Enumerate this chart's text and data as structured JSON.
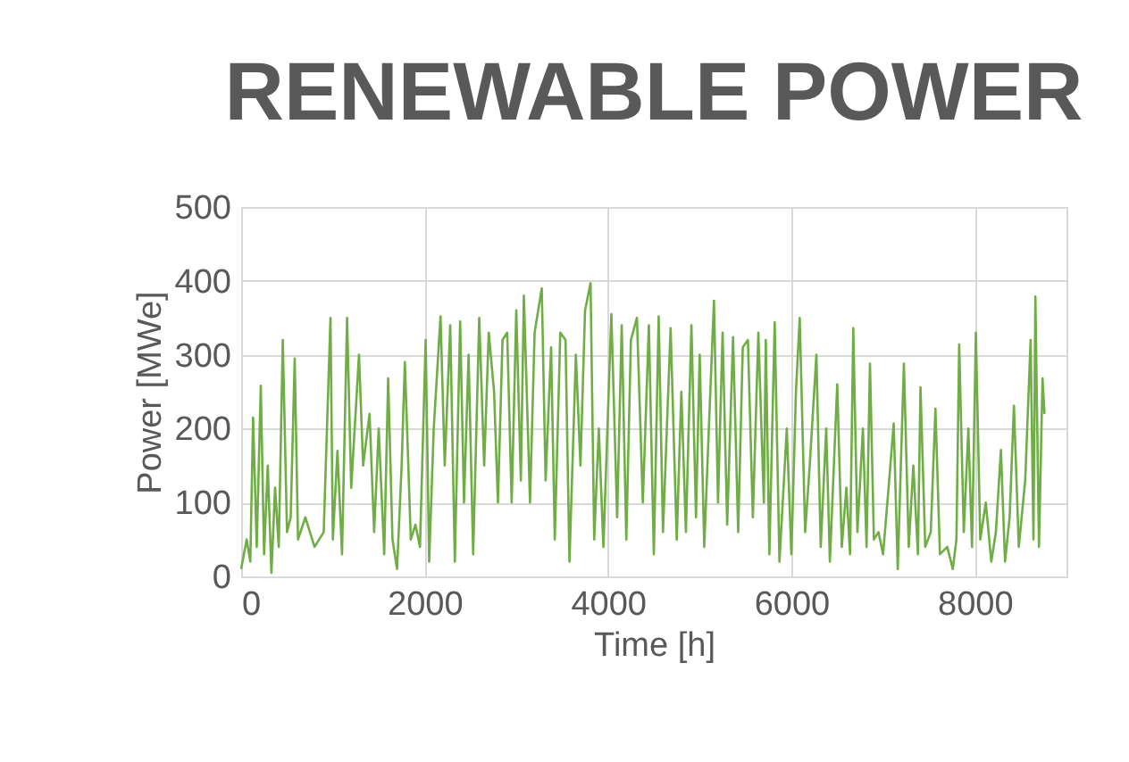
{
  "chart_data": {
    "type": "line",
    "title": "RENEWABLE POWER",
    "xlabel": "Time [h]",
    "ylabel": "Power [MWe]",
    "x": [
      0,
      60,
      100,
      130,
      170,
      214,
      250,
      290,
      330,
      370,
      410,
      454,
      500,
      540,
      584,
      620,
      700,
      800,
      900,
      974,
      1000,
      1050,
      1100,
      1155,
      1200,
      1285,
      1330,
      1400,
      1450,
      1500,
      1560,
      1603,
      1650,
      1700,
      1750,
      1785,
      1850,
      1900,
      1950,
      2012,
      2050,
      2100,
      2174,
      2220,
      2280,
      2330,
      2388,
      2430,
      2480,
      2530,
      2596,
      2650,
      2700,
      2758,
      2800,
      2850,
      2901,
      2950,
      3000,
      3050,
      3083,
      3150,
      3200,
      3278,
      3320,
      3380,
      3420,
      3480,
      3537,
      3580,
      3650,
      3700,
      3750,
      3810,
      3850,
      3900,
      3950,
      4037,
      4100,
      4150,
      4200,
      4250,
      4316,
      4380,
      4446,
      4500,
      4553,
      4600,
      4683,
      4750,
      4800,
      4850,
      4910,
      4960,
      5000,
      5050,
      5100,
      5156,
      5200,
      5250,
      5300,
      5364,
      5420,
      5470,
      5526,
      5580,
      5640,
      5700,
      5721,
      5760,
      5818,
      5870,
      5950,
      6000,
      6050,
      6091,
      6150,
      6200,
      6273,
      6320,
      6380,
      6420,
      6500,
      6550,
      6600,
      6640,
      6675,
      6720,
      6780,
      6820,
      6857,
      6900,
      6950,
      7000,
      7060,
      7116,
      7160,
      7227,
      7280,
      7330,
      7380,
      7408,
      7460,
      7520,
      7571,
      7620,
      7700,
      7760,
      7800,
      7830,
      7880,
      7930,
      7970,
      8012,
      8060,
      8120,
      8180,
      8230,
      8285,
      8330,
      8380,
      8427,
      8480,
      8550,
      8609,
      8640,
      8661,
      8700,
      8739,
      8760
    ],
    "series": [
      {
        "color": "#70ad47",
        "values": [
          10,
          50,
          20,
          215,
          40,
          258,
          30,
          150,
          5,
          120,
          40,
          320,
          60,
          80,
          295,
          50,
          80,
          40,
          60,
          350,
          50,
          170,
          30,
          350,
          120,
          300,
          150,
          220,
          60,
          200,
          30,
          268,
          50,
          10,
          150,
          290,
          50,
          70,
          40,
          320,
          20,
          200,
          352,
          150,
          340,
          20,
          345,
          100,
          300,
          30,
          350,
          150,
          330,
          250,
          100,
          320,
          330,
          100,
          360,
          130,
          380,
          100,
          330,
          390,
          130,
          310,
          50,
          330,
          320,
          20,
          300,
          150,
          360,
          397,
          50,
          200,
          40,
          355,
          80,
          340,
          50,
          320,
          350,
          100,
          340,
          30,
          352,
          60,
          336,
          50,
          250,
          60,
          340,
          80,
          300,
          40,
          200,
          373,
          100,
          330,
          70,
          324,
          60,
          310,
          320,
          80,
          330,
          100,
          320,
          30,
          344,
          20,
          200,
          30,
          250,
          350,
          60,
          150,
          300,
          40,
          200,
          20,
          260,
          40,
          120,
          30,
          336,
          60,
          200,
          40,
          288,
          50,
          60,
          30,
          120,
          207,
          10,
          288,
          40,
          150,
          30,
          256,
          40,
          60,
          227,
          30,
          40,
          10,
          50,
          314,
          60,
          200,
          40,
          330,
          50,
          100,
          20,
          60,
          171,
          20,
          80,
          231,
          40,
          130,
          320,
          50,
          379,
          40,
          268,
          220
        ]
      }
    ],
    "xlim": [
      0,
      9000
    ],
    "xticks": [
      0,
      2000,
      4000,
      6000,
      8000
    ],
    "ylim": [
      0,
      500
    ],
    "yticks": [
      0,
      100,
      200,
      300,
      400,
      500
    ],
    "grid": true,
    "marker": "none",
    "line_style": "solid"
  }
}
